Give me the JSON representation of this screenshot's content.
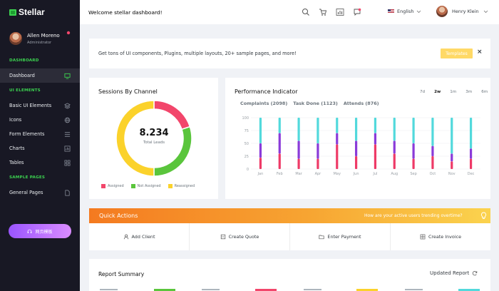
{
  "brand": {
    "name": "Stellar"
  },
  "profile": {
    "name": "Allen Moreno",
    "role": "Administrator"
  },
  "sidebar": {
    "sections": [
      {
        "title": "DASHBOARD"
      },
      {
        "title": "UI ELEMENTS"
      },
      {
        "title": "SAMPLE PAGES"
      }
    ],
    "items": [
      {
        "label": "Dashboard",
        "icon": "monitor-icon"
      },
      {
        "label": "Basic UI Elements",
        "icon": "layers-icon"
      },
      {
        "label": "Icons",
        "icon": "globe-icon"
      },
      {
        "label": "Form Elements",
        "icon": "list-icon"
      },
      {
        "label": "Charts",
        "icon": "bar-chart-icon"
      },
      {
        "label": "Tables",
        "icon": "grid-icon"
      },
      {
        "label": "General Pages",
        "icon": "file-icon"
      }
    ],
    "button_label": "网页模板"
  },
  "topbar": {
    "welcome": "Welcome stellar dashboard!",
    "language": "English",
    "user": "Henry Klein"
  },
  "banner": {
    "text": "Get tons of UI components, Plugins, multiple layouts, 20+ sample pages, and more!",
    "button": "Templates",
    "close": "×"
  },
  "sessions": {
    "title": "Sessions By Channel",
    "total": "8.234",
    "total_label": "Total Leads",
    "legend": [
      {
        "label": "Assigned",
        "color": "#f2466b"
      },
      {
        "label": "Not Assigned",
        "color": "#5ac53c"
      },
      {
        "label": "Reassigned",
        "color": "#fbd22b"
      }
    ]
  },
  "performance": {
    "title": "Performance Indicator",
    "tabs": [
      "7d",
      "2w",
      "1m",
      "3m",
      "6m"
    ],
    "active_tab": "2w",
    "metrics": [
      "Complaints (2098)",
      "Task Done (1123)",
      "Attends (876)"
    ]
  },
  "chart_data": [
    {
      "type": "pie",
      "categories": [
        "Assigned",
        "Not Assigned",
        "Reassigned"
      ],
      "values": [
        20,
        30,
        50
      ],
      "colors": [
        "#f2466b",
        "#5ac53c",
        "#fbd22b"
      ]
    },
    {
      "type": "bar",
      "stacked": true,
      "categories": [
        "Jan",
        "Feb",
        "Mar",
        "Apr",
        "May",
        "Jun",
        "Jul",
        "Aug",
        "Sep",
        "Oct",
        "Nov",
        "Dec"
      ],
      "ylim": [
        0,
        100
      ],
      "yticks": [
        0,
        25,
        50,
        75,
        100
      ],
      "series": [
        {
          "values": [
            22,
            30,
            20,
            20,
            48,
            25,
            48,
            30,
            20,
            25,
            15,
            20
          ],
          "color": "#ee3a67"
        },
        {
          "values": [
            28,
            40,
            35,
            30,
            22,
            30,
            22,
            25,
            30,
            20,
            15,
            20
          ],
          "color": "#8a3bd9"
        },
        {
          "values": [
            50,
            30,
            45,
            50,
            30,
            45,
            30,
            45,
            50,
            55,
            70,
            60
          ],
          "color": "#52d9dc"
        }
      ]
    }
  ],
  "quick_actions": {
    "title": "Quick Actions",
    "subtitle": "How are your active users trending overtime?",
    "items": [
      {
        "label": "Add Client",
        "icon": "user-icon"
      },
      {
        "label": "Create Quote",
        "icon": "quote-icon"
      },
      {
        "label": "Enter Payment",
        "icon": "folder-icon"
      },
      {
        "label": "Create Invoice",
        "icon": "invoice-icon"
      }
    ]
  },
  "report": {
    "title": "Report Summary",
    "updated": "Updated Report"
  }
}
